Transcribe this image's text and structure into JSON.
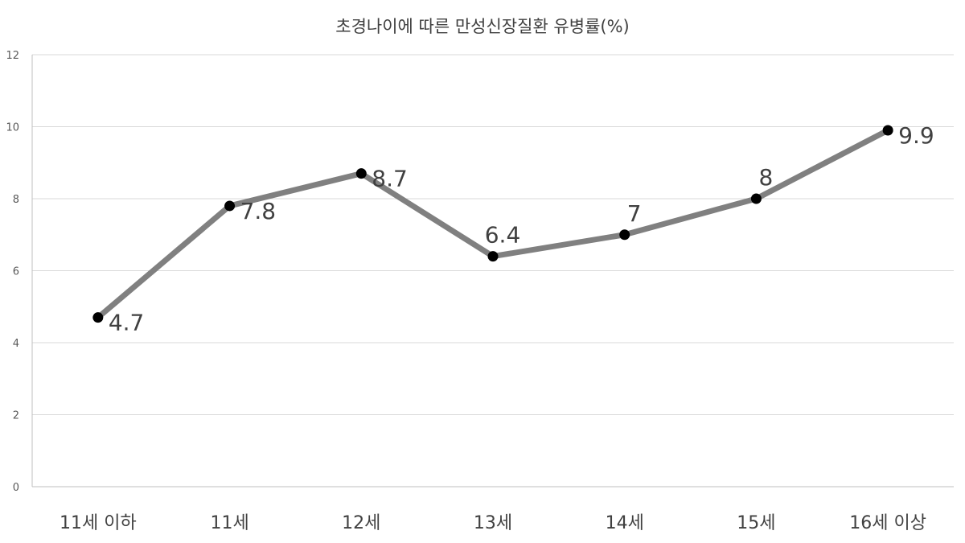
{
  "chart_data": {
    "type": "line",
    "title": "초경나이에 따른 만성신장질환 유병률(%)",
    "categories": [
      "11세 이하",
      "11세",
      "12세",
      "13세",
      "14세",
      "15세",
      "16세 이상"
    ],
    "series": [
      {
        "values": [
          4.7,
          7.8,
          8.7,
          6.4,
          7,
          8,
          9.9
        ]
      }
    ],
    "data_labels": [
      "4.7",
      "7.8",
      "8.7",
      "6.4",
      "7",
      "8",
      "9.9"
    ],
    "ylim": [
      0,
      12
    ],
    "yticks": [
      "0",
      "2",
      "4",
      "6",
      "8",
      "10",
      "12"
    ],
    "grid": true,
    "legend": "none",
    "colors": {
      "line": "#808080",
      "marker": "#000000",
      "grid": "#d9d9d9"
    }
  }
}
